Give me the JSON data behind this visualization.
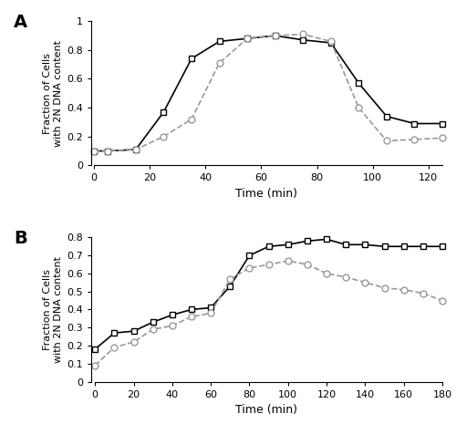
{
  "panel_A": {
    "solid_squares": {
      "x": [
        0,
        5,
        15,
        25,
        35,
        45,
        55,
        65,
        75,
        85,
        95,
        105,
        115,
        125
      ],
      "y": [
        0.1,
        0.1,
        0.11,
        0.37,
        0.74,
        0.86,
        0.88,
        0.9,
        0.87,
        0.85,
        0.57,
        0.34,
        0.29,
        0.29
      ]
    },
    "dashed_circles": {
      "x": [
        0,
        5,
        15,
        25,
        35,
        45,
        55,
        65,
        75,
        85,
        95,
        105,
        115,
        125
      ],
      "y": [
        0.1,
        0.1,
        0.11,
        0.2,
        0.32,
        0.71,
        0.88,
        0.9,
        0.91,
        0.86,
        0.4,
        0.17,
        0.18,
        0.19
      ]
    },
    "ylabel": "Fraction of Cells\nwith 2N DNA content",
    "xlabel": "Time (min)",
    "ylim": [
      0,
      1.0
    ],
    "xlim": [
      -1,
      125
    ],
    "ytick_vals": [
      0,
      0.2,
      0.4,
      0.6,
      0.8,
      1.0
    ],
    "ytick_labels": [
      "0",
      "0.2",
      "0.4",
      "0.6",
      "0.8",
      "1"
    ],
    "xticks": [
      0,
      20,
      40,
      60,
      80,
      100,
      120
    ]
  },
  "panel_B": {
    "solid_squares": {
      "x": [
        0,
        10,
        20,
        30,
        40,
        50,
        60,
        70,
        80,
        90,
        100,
        110,
        120,
        130,
        140,
        150,
        160,
        170,
        180
      ],
      "y": [
        0.18,
        0.27,
        0.28,
        0.33,
        0.37,
        0.4,
        0.41,
        0.53,
        0.7,
        0.75,
        0.76,
        0.78,
        0.79,
        0.76,
        0.76,
        0.75,
        0.75,
        0.75,
        0.75
      ]
    },
    "dashed_circles": {
      "x": [
        0,
        10,
        20,
        30,
        40,
        50,
        60,
        70,
        80,
        90,
        100,
        110,
        120,
        130,
        140,
        150,
        160,
        170,
        180
      ],
      "y": [
        0.09,
        0.19,
        0.22,
        0.29,
        0.31,
        0.36,
        0.38,
        0.57,
        0.63,
        0.65,
        0.67,
        0.65,
        0.6,
        0.58,
        0.55,
        0.52,
        0.51,
        0.49,
        0.45
      ]
    },
    "ylabel": "Fraction of Cells\nwith 2N DNA content",
    "xlabel": "Time (min)",
    "ylim": [
      0,
      0.8
    ],
    "xlim": [
      -2,
      180
    ],
    "ytick_vals": [
      0,
      0.1,
      0.2,
      0.3,
      0.4,
      0.5,
      0.6,
      0.7,
      0.8
    ],
    "ytick_labels": [
      "0",
      "0.1",
      "0.2",
      "0.3",
      "0.4",
      "0.5",
      "0.6",
      "0.7",
      "0.8"
    ],
    "xticks": [
      0,
      20,
      40,
      60,
      80,
      100,
      120,
      140,
      160,
      180
    ]
  },
  "line_color_solid": "#000000",
  "line_color_dashed": "#999999",
  "marker_size": 5,
  "linewidth": 1.2
}
